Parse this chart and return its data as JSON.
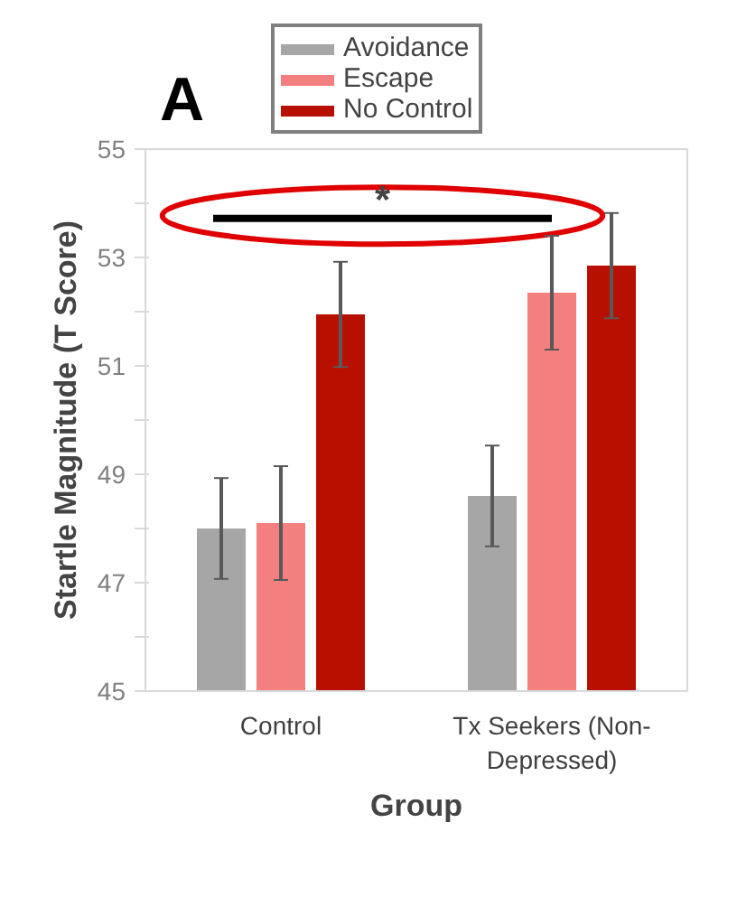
{
  "chart_data": {
    "type": "bar",
    "title": "A",
    "xlabel": "Group",
    "ylabel": "Startle Magnitude (T Score)",
    "categories": [
      "Control",
      "Tx Seekers (Non-Depressed)"
    ],
    "series": [
      {
        "name": "Avoidance",
        "color": "#a6a6a6",
        "values": [
          48.0,
          48.6
        ],
        "errors": [
          0.93,
          0.93
        ]
      },
      {
        "name": "Escape",
        "color": "#f47f7f",
        "values": [
          48.1,
          52.35
        ],
        "errors": [
          1.05,
          1.05
        ]
      },
      {
        "name": "No Control",
        "color": "#b81000",
        "values": [
          51.95,
          52.85
        ],
        "errors": [
          0.97,
          0.97
        ]
      }
    ],
    "ylim": [
      45,
      55
    ],
    "yticks": [
      45,
      {
        "value": 46,
        "label": null
      },
      47,
      {
        "value": 48,
        "label": null
      },
      49,
      {
        "value": 50,
        "label": null
      },
      51,
      {
        "value": 52,
        "label": null
      },
      53,
      {
        "value": 54,
        "label": null
      },
      55
    ],
    "annotations": [
      "*"
    ],
    "legend": "top left",
    "grid": false
  }
}
